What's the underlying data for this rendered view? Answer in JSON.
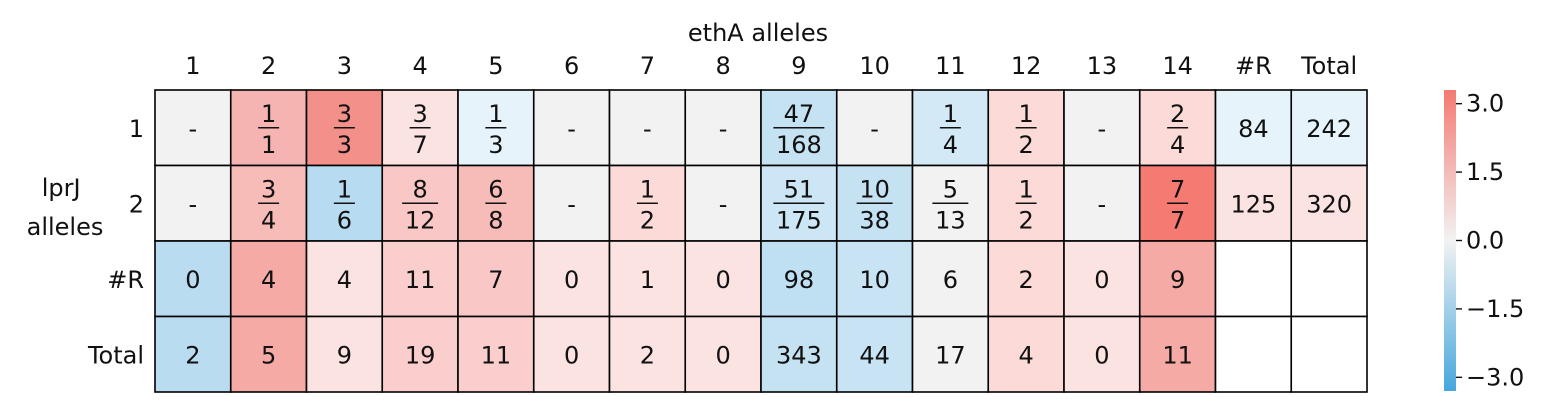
{
  "chart_data": {
    "type": "heatmap",
    "title": "ethA alleles",
    "ylabel_lines": [
      "lprJ",
      "alleles"
    ],
    "columns": [
      "1",
      "2",
      "3",
      "4",
      "5",
      "6",
      "7",
      "8",
      "9",
      "10",
      "11",
      "12",
      "13",
      "14",
      "#R",
      "Total"
    ],
    "rows": [
      "1",
      "2",
      "#R",
      "Total"
    ],
    "cells": [
      [
        {
          "text": "-",
          "color": "#f2f2f2"
        },
        {
          "num": "1",
          "den": "1",
          "color": "#f5b4b1"
        },
        {
          "num": "3",
          "den": "3",
          "color": "#f4908a"
        },
        {
          "num": "3",
          "den": "7",
          "color": "#fbe3e2"
        },
        {
          "num": "1",
          "den": "3",
          "color": "#e7f3fb"
        },
        {
          "text": "-",
          "color": "#f2f2f2"
        },
        {
          "text": "-",
          "color": "#f2f2f2"
        },
        {
          "text": "-",
          "color": "#f2f2f2"
        },
        {
          "num": "47",
          "den": "168",
          "color": "#c5e2f3"
        },
        {
          "text": "-",
          "color": "#f2f2f2"
        },
        {
          "num": "1",
          "den": "4",
          "color": "#d3e9f6"
        },
        {
          "num": "1",
          "den": "2",
          "color": "#fbdad8"
        },
        {
          "text": "-",
          "color": "#f2f2f2"
        },
        {
          "num": "2",
          "den": "4",
          "color": "#fbdad8"
        },
        {
          "text": "84",
          "color": "#e7f3fb"
        },
        {
          "text": "242",
          "color": "#e7f3fb"
        }
      ],
      [
        {
          "text": "-",
          "color": "#f2f2f2"
        },
        {
          "num": "3",
          "den": "4",
          "color": "#f7bbb8"
        },
        {
          "num": "1",
          "den": "6",
          "color": "#b7dbf1"
        },
        {
          "num": "8",
          "den": "12",
          "color": "#f9c8c6"
        },
        {
          "num": "6",
          "den": "8",
          "color": "#f7bbb8"
        },
        {
          "text": "-",
          "color": "#f2f2f2"
        },
        {
          "num": "1",
          "den": "2",
          "color": "#fbdad8"
        },
        {
          "text": "-",
          "color": "#f2f2f2"
        },
        {
          "num": "51",
          "den": "175",
          "color": "#cde6f5"
        },
        {
          "num": "10",
          "den": "38",
          "color": "#c5e2f3"
        },
        {
          "num": "5",
          "den": "13",
          "color": "#f2f2f2"
        },
        {
          "num": "1",
          "den": "2",
          "color": "#fbdad8"
        },
        {
          "text": "-",
          "color": "#f2f2f2"
        },
        {
          "num": "7",
          "den": "7",
          "color": "#f47a72"
        },
        {
          "text": "125",
          "color": "#fbe3e2"
        },
        {
          "text": "320",
          "color": "#fbe3e2"
        }
      ],
      [
        {
          "text": "0",
          "color": "#b9dcf1"
        },
        {
          "text": "4",
          "color": "#f6aaa6"
        },
        {
          "text": "4",
          "color": "#fbe3e2"
        },
        {
          "text": "11",
          "color": "#f9cecc"
        },
        {
          "text": "7",
          "color": "#f9c8c6"
        },
        {
          "text": "0",
          "color": "#fbe3e2"
        },
        {
          "text": "1",
          "color": "#fbe3e2"
        },
        {
          "text": "0",
          "color": "#fbe3e2"
        },
        {
          "text": "98",
          "color": "#bfdff2"
        },
        {
          "text": "10",
          "color": "#c7e3f4"
        },
        {
          "text": "6",
          "color": "#f2f2f2"
        },
        {
          "text": "2",
          "color": "#fbdad8"
        },
        {
          "text": "0",
          "color": "#fbe3e2"
        },
        {
          "text": "9",
          "color": "#f6aaa6"
        },
        {
          "text": "",
          "color": "#ffffff"
        },
        {
          "text": "",
          "color": "#ffffff"
        }
      ],
      [
        {
          "text": "2",
          "color": "#b9dcf1"
        },
        {
          "text": "5",
          "color": "#f6aaa6"
        },
        {
          "text": "9",
          "color": "#fbe3e2"
        },
        {
          "text": "19",
          "color": "#f9cecc"
        },
        {
          "text": "11",
          "color": "#f9cecc"
        },
        {
          "text": "0",
          "color": "#fbe3e2"
        },
        {
          "text": "2",
          "color": "#fbe3e2"
        },
        {
          "text": "0",
          "color": "#fbe3e2"
        },
        {
          "text": "343",
          "color": "#c5e2f3"
        },
        {
          "text": "44",
          "color": "#c7e3f4"
        },
        {
          "text": "17",
          "color": "#f2f2f2"
        },
        {
          "text": "4",
          "color": "#fbdad8"
        },
        {
          "text": "0",
          "color": "#fbe3e2"
        },
        {
          "text": "11",
          "color": "#f6aaa6"
        },
        {
          "text": "",
          "color": "#ffffff"
        },
        {
          "text": "",
          "color": "#ffffff"
        }
      ]
    ],
    "colorbar": {
      "range": [
        -3.3,
        3.3
      ],
      "ticks": [
        3.0,
        1.5,
        0.0,
        -1.5,
        -3.0
      ],
      "tick_labels": [
        "3.0",
        "1.5",
        "0.0",
        "−1.5",
        "−3.0"
      ],
      "colors": {
        "top": "#f47a72",
        "middle": "#f2f2f2",
        "bottom": "#45a7dd"
      }
    },
    "grid": true
  }
}
